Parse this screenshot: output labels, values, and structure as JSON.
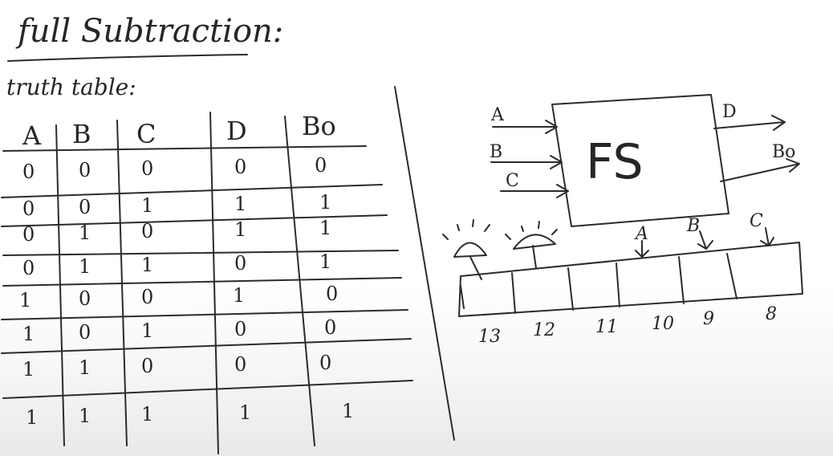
{
  "title": "full Subtraction",
  "title_suffix": ":",
  "truth_table": {
    "label": "truth table",
    "label_suffix": ":",
    "headers": [
      "A",
      "B",
      "C",
      "D",
      "Bo"
    ],
    "rows": [
      [
        "0",
        "0",
        "0",
        "0",
        "0"
      ],
      [
        "0",
        "0",
        "1",
        "1",
        "1"
      ],
      [
        "0",
        "1",
        "0",
        "1",
        "1"
      ],
      [
        "0",
        "1",
        "1",
        "0",
        "1"
      ],
      [
        "1",
        "0",
        "0",
        "1",
        "0"
      ],
      [
        "1",
        "0",
        "1",
        "0",
        "0"
      ],
      [
        "1",
        "1",
        "0",
        "0",
        "0"
      ],
      [
        "1",
        "1",
        "1",
        "1",
        "1"
      ]
    ]
  },
  "block": {
    "name": "FS",
    "inputs": [
      "A",
      "B",
      "C"
    ],
    "outputs": [
      "D",
      "Bo"
    ]
  },
  "chip": {
    "pins": [
      "13",
      "12",
      "11",
      "10",
      "9",
      "8"
    ],
    "pin_inputs": [
      "A",
      "B",
      "C"
    ],
    "led_count": 2
  }
}
